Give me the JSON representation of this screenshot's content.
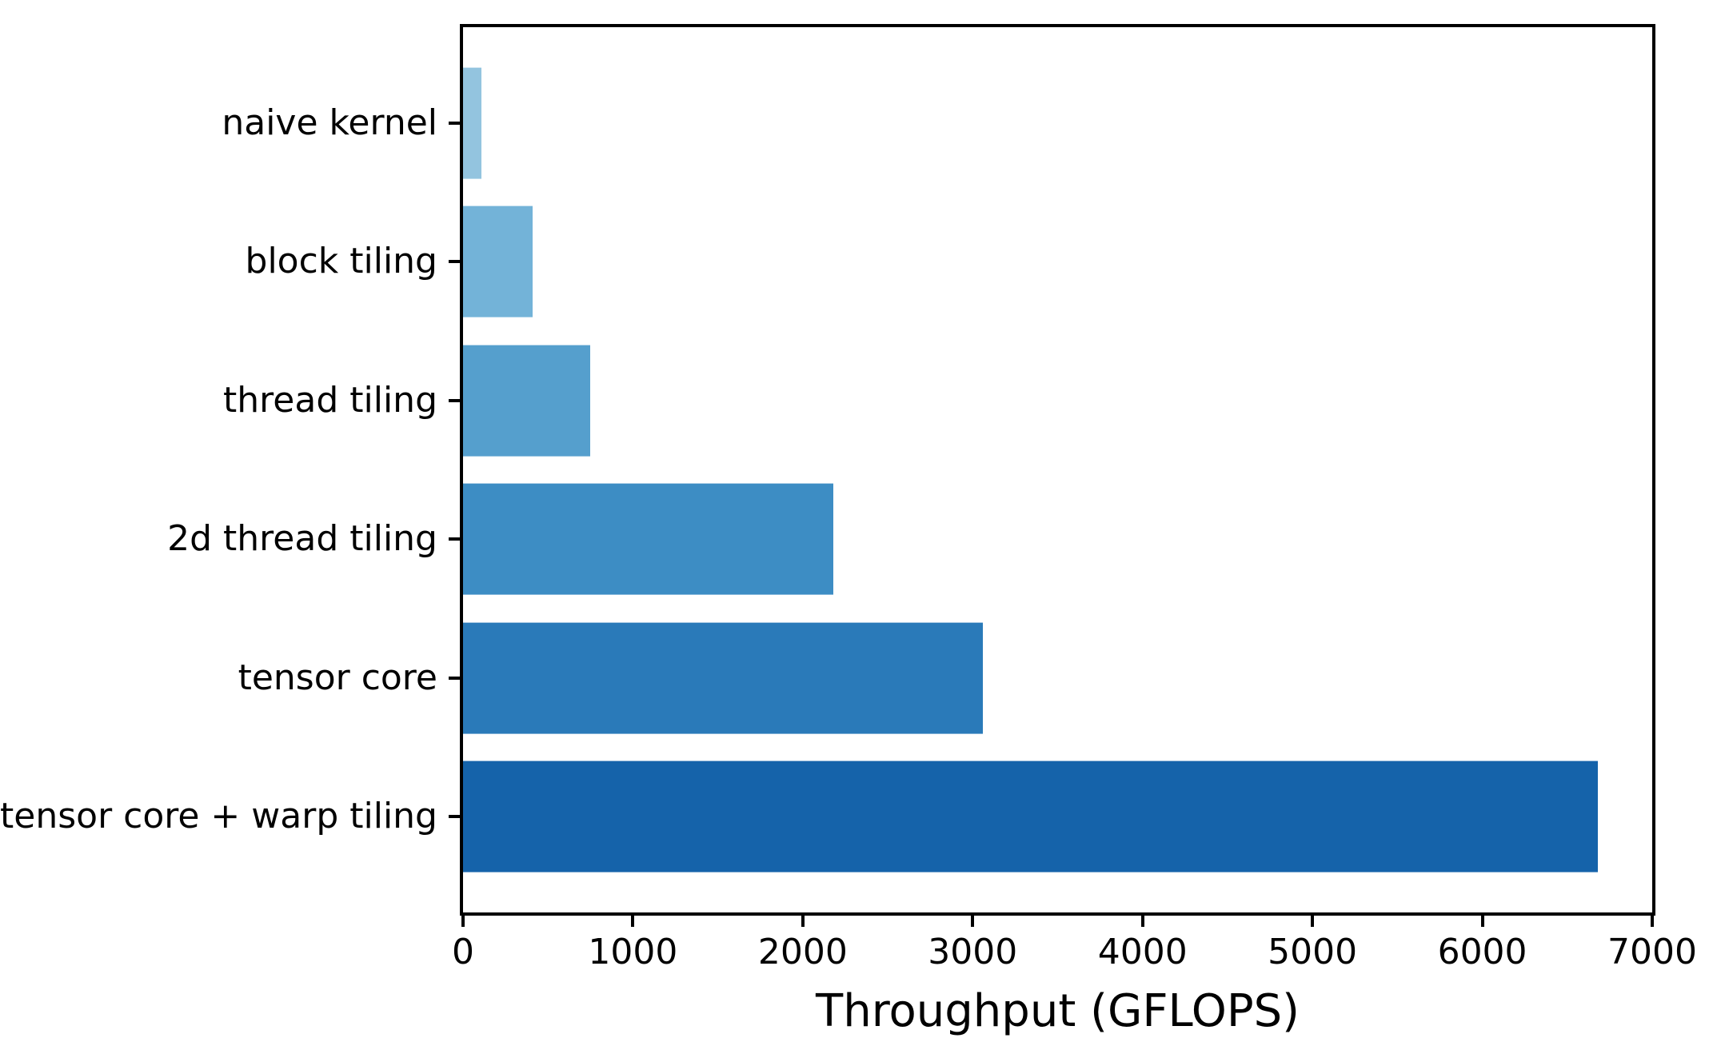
{
  "figure": {
    "background_color": "#ffffff"
  },
  "chart_data": {
    "type": "bar",
    "orientation": "horizontal",
    "title": "",
    "xlabel": "Throughput (GFLOPS)",
    "ylabel": "",
    "categories": [
      "naive kernel",
      "block tiling",
      "thread tiling",
      "2d thread tiling",
      "tensor core",
      "tensor core + warp tiling"
    ],
    "values": [
      110,
      410,
      750,
      2180,
      3060,
      6680
    ],
    "bar_colors": [
      "#93c4df",
      "#73b3d8",
      "#559fcd",
      "#3d8dc4",
      "#2a7ab9",
      "#1563aa"
    ],
    "xlim": [
      0,
      7000
    ],
    "xticks": [
      0,
      1000,
      2000,
      3000,
      4000,
      5000,
      6000,
      7000
    ],
    "grid": false,
    "legend": false,
    "bar_height_fraction": 0.8,
    "axis_color": "#000000",
    "text_color": "#000000"
  }
}
